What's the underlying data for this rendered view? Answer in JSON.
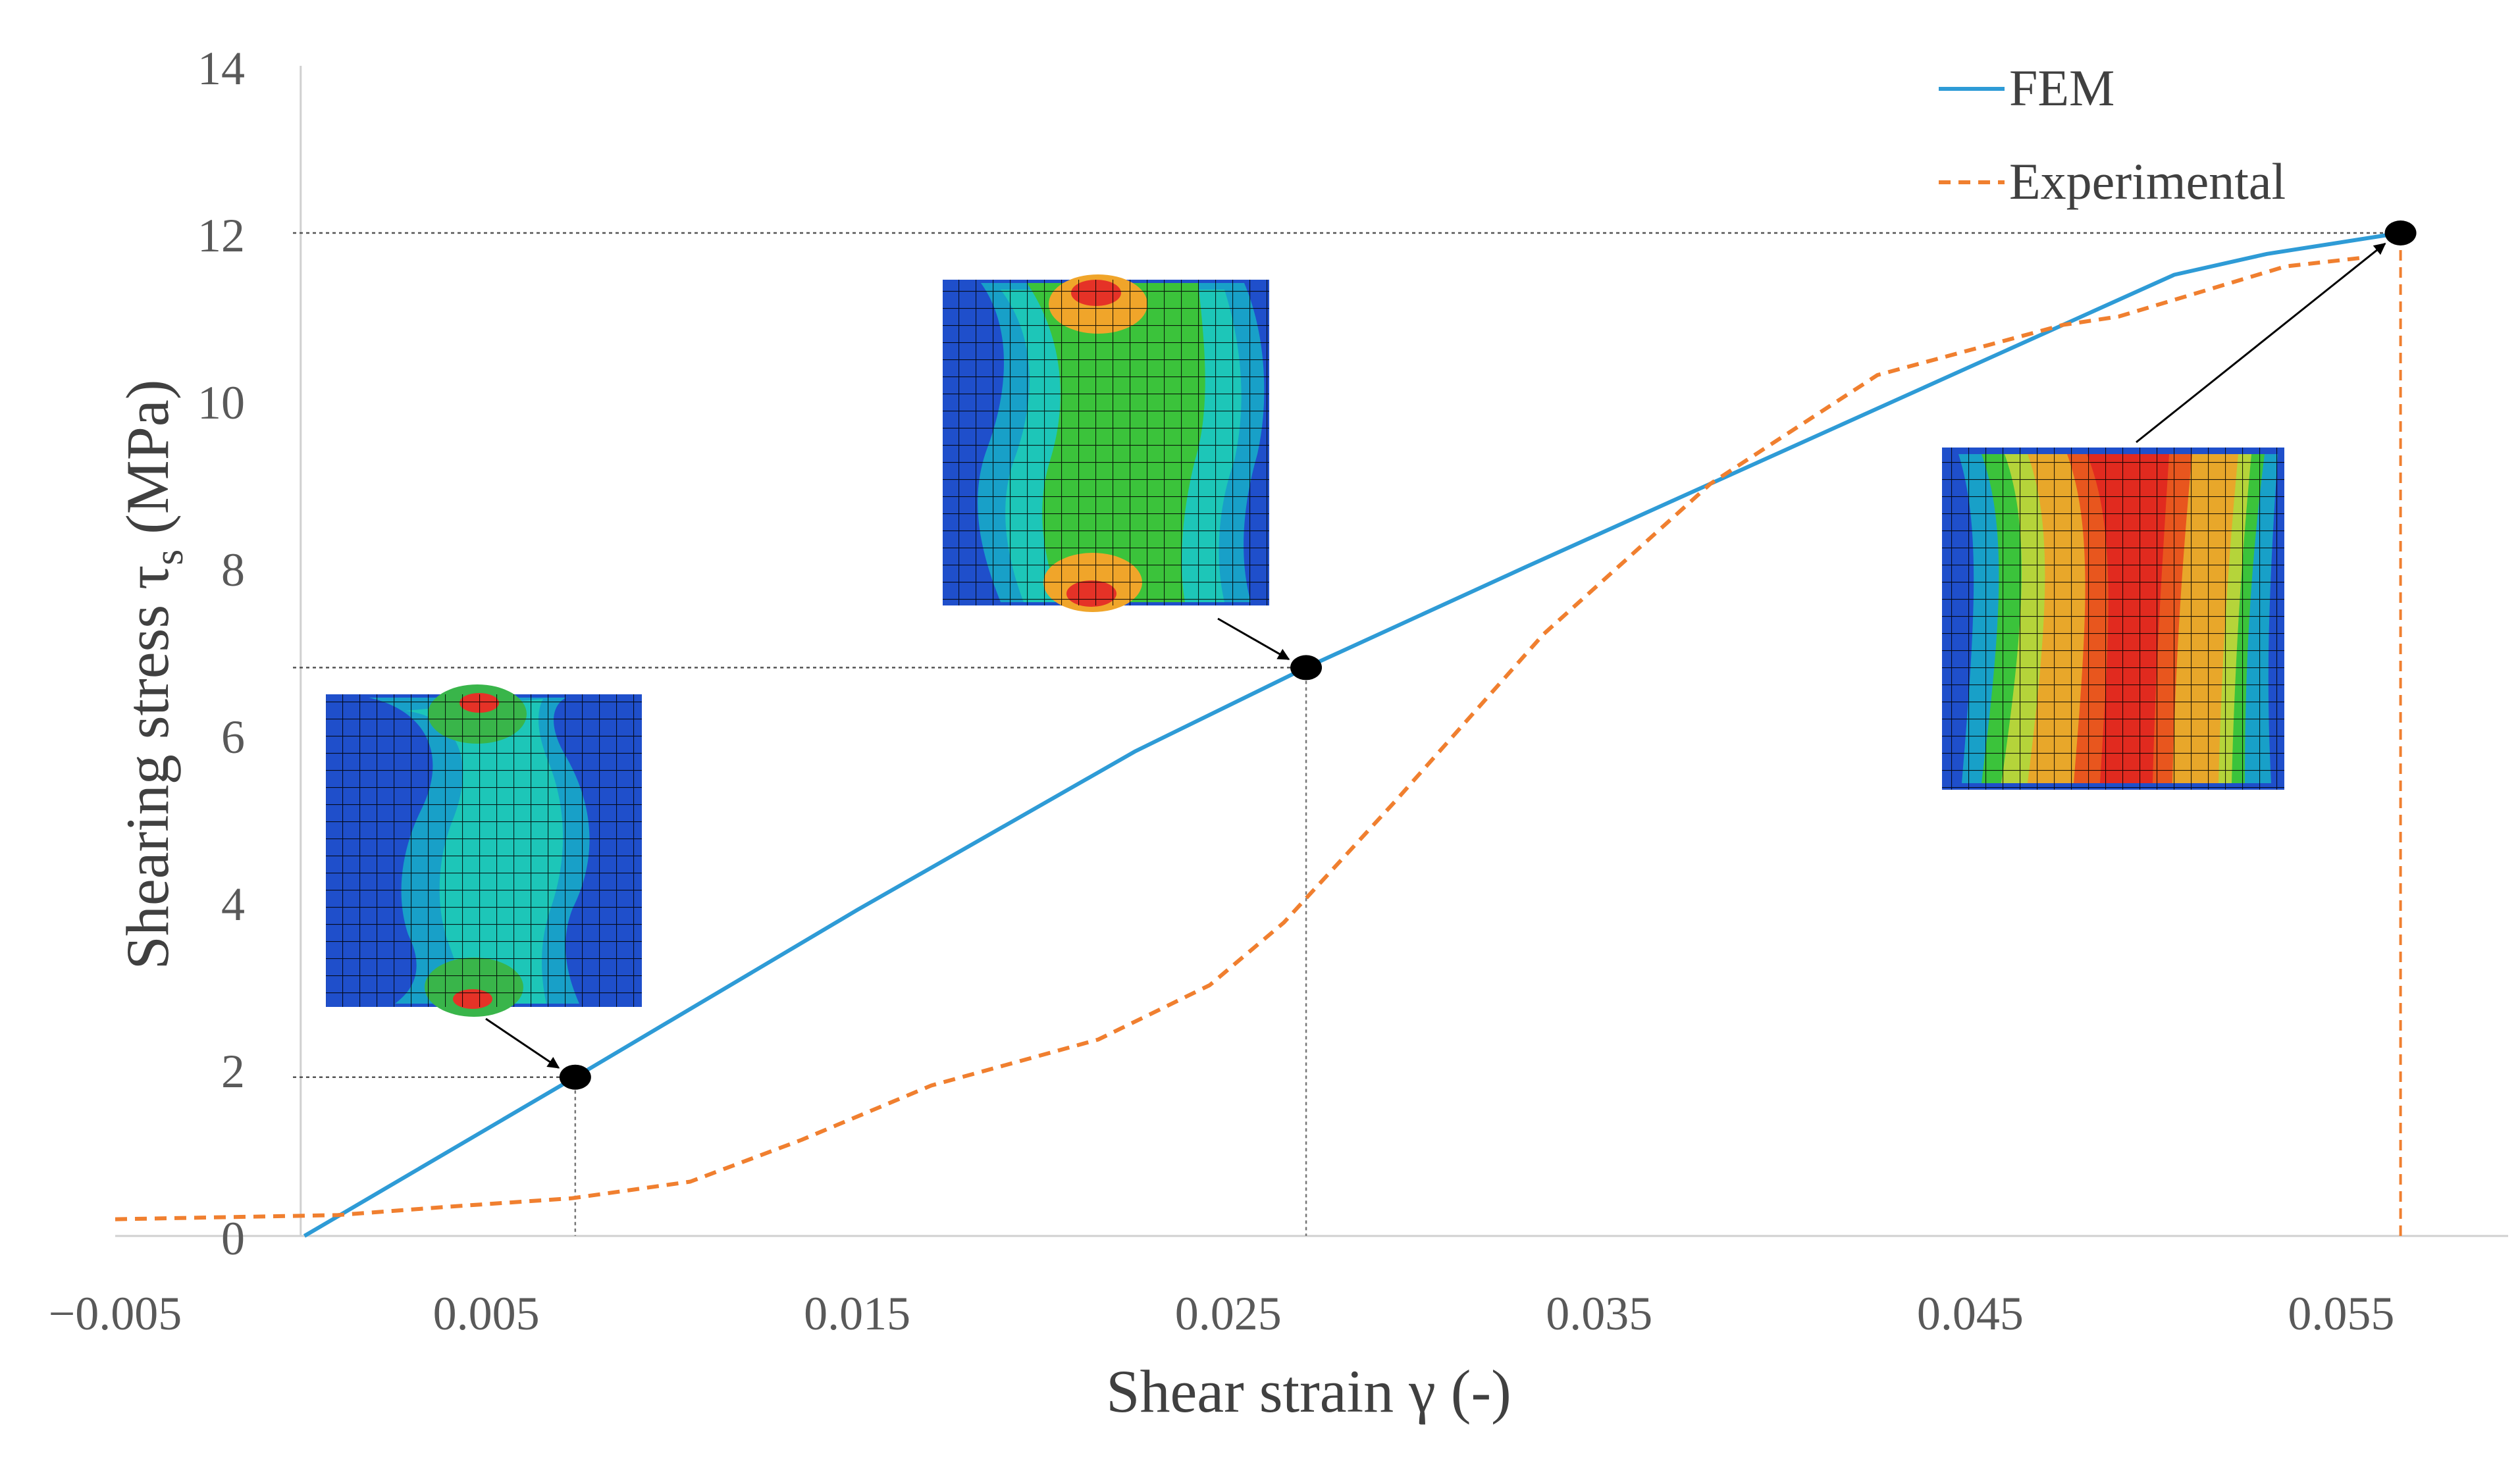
{
  "chart_data": {
    "type": "line",
    "title": "",
    "xlabel": "Shear strain γ (-)",
    "ylabel_main": "Shearing stress τ",
    "ylabel_sub": "s",
    "ylabel_unit": " (MPa)",
    "xlim": [
      -0.005,
      0.0595
    ],
    "ylim": [
      0,
      14
    ],
    "x_ticks": [
      -0.005,
      0.005,
      0.015,
      0.025,
      0.035,
      0.045,
      0.055
    ],
    "x_tick_labels": [
      "−0.005",
      "0.005",
      "0.015",
      "0.025",
      "0.035",
      "0.045",
      "0.055"
    ],
    "y_ticks": [
      0,
      2,
      4,
      6,
      8,
      10,
      12,
      14
    ],
    "y_tick_labels": [
      "0",
      "2",
      "4",
      "6",
      "8",
      "10",
      "12",
      "14"
    ],
    "grid": false,
    "legend_position": "top-right",
    "series": [
      {
        "name": "FEM",
        "color": "#2E9BD6",
        "style": "solid",
        "x": [
          0.0001,
          0.0074,
          0.015,
          0.0225,
          0.0271,
          0.033,
          0.039,
          0.045,
          0.0495,
          0.0505,
          0.053,
          0.0566
        ],
        "y": [
          0.0,
          1.9,
          3.9,
          5.8,
          6.8,
          8.0,
          9.2,
          10.4,
          11.3,
          11.5,
          11.75,
          12.0
        ]
      },
      {
        "name": "Experimental",
        "color": "#F07F2F",
        "style": "dashed",
        "x": [
          -0.005,
          0.001,
          0.004,
          0.0073,
          0.0105,
          0.0135,
          0.017,
          0.0215,
          0.0245,
          0.0265,
          0.0295,
          0.0335,
          0.038,
          0.0425,
          0.0475,
          0.049,
          0.0505,
          0.0535,
          0.0555
        ],
        "y": [
          0.2,
          0.25,
          0.35,
          0.45,
          0.65,
          1.15,
          1.8,
          2.35,
          3.0,
          3.75,
          5.2,
          7.2,
          9.0,
          10.3,
          10.9,
          11.0,
          11.2,
          11.6,
          11.7
        ]
      }
    ],
    "points": [
      {
        "name": "point-1",
        "x": 0.0074,
        "y": 1.9
      },
      {
        "name": "point-2",
        "x": 0.0271,
        "y": 6.8
      },
      {
        "name": "point-3",
        "x": 0.0566,
        "y": 12.0
      }
    ],
    "inset_labels": [
      "contour-plot-low",
      "contour-plot-mid",
      "contour-plot-failure"
    ]
  }
}
